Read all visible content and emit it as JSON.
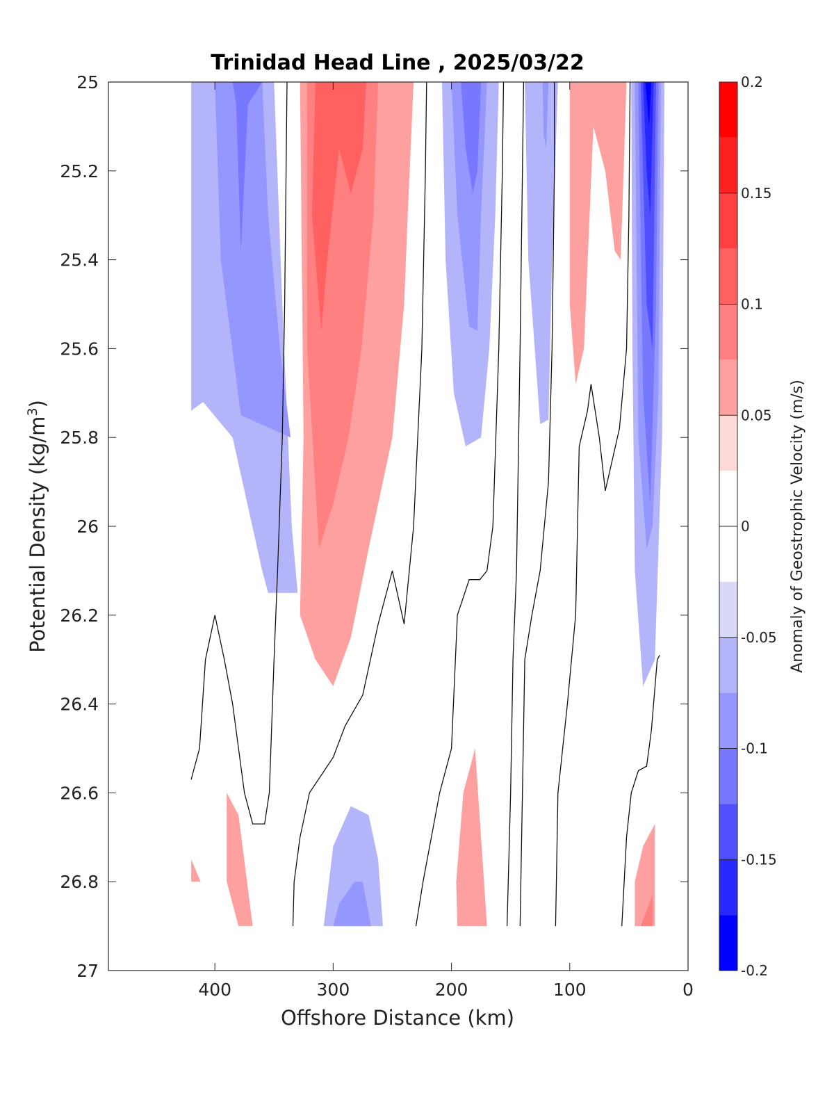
{
  "chart_data": {
    "type": "contour",
    "title": "Trinidad Head Line , 2025/03/22",
    "xlabel": "Offshore Distance (km)",
    "ylabel_main": "Potential Density (kg/m",
    "ylabel_sup": "3",
    "ylabel_close": ")",
    "xlim": [
      490,
      0
    ],
    "ylim": [
      25,
      27
    ],
    "y_reversed": true,
    "grid": false,
    "x_ticks": [
      400,
      300,
      200,
      100,
      0
    ],
    "x_tick_labels": [
      "400",
      "300",
      "200",
      "100",
      "0"
    ],
    "y_ticks": [
      25,
      25.2,
      25.4,
      25.6,
      25.8,
      26,
      26.2,
      26.4,
      26.6,
      26.8,
      27
    ],
    "y_tick_labels": [
      "25",
      "25.2",
      "25.4",
      "25.6",
      "25.8",
      "26",
      "26.2",
      "26.4",
      "26.6",
      "26.8",
      "27"
    ],
    "colorbar": {
      "label": "Anomaly of Geostrophic Velocity (m/s)",
      "range": [
        -0.2,
        0.2
      ],
      "tick_values": [
        0.2,
        0.15,
        0.1,
        0.05,
        0,
        -0.05,
        -0.1,
        -0.15,
        -0.2
      ],
      "tick_labels": [
        "0.2",
        "0.15",
        "0.1",
        "0.05",
        "0",
        "-0.05",
        "-0.1",
        "-0.15",
        "-0.2"
      ],
      "bins": [
        {
          "min": 0.175,
          "max": 0.2,
          "color": "#ff0000"
        },
        {
          "min": 0.15,
          "max": 0.175,
          "color": "#ff2020"
        },
        {
          "min": 0.125,
          "max": 0.15,
          "color": "#ff4040"
        },
        {
          "min": 0.1,
          "max": 0.125,
          "color": "#ff6060"
        },
        {
          "min": 0.075,
          "max": 0.1,
          "color": "#ff8080"
        },
        {
          "min": 0.05,
          "max": 0.075,
          "color": "#ffa0a0"
        },
        {
          "min": 0.025,
          "max": 0.05,
          "color": "#ffd8d8"
        },
        {
          "min": -0.025,
          "max": 0.025,
          "color": "#ffffff"
        },
        {
          "min": -0.05,
          "max": -0.025,
          "color": "#d8d8f8"
        },
        {
          "min": -0.075,
          "max": -0.05,
          "color": "#b4b4fa"
        },
        {
          "min": -0.1,
          "max": -0.075,
          "color": "#9696ff"
        },
        {
          "min": -0.125,
          "max": -0.1,
          "color": "#7878ff"
        },
        {
          "min": -0.15,
          "max": -0.125,
          "color": "#5050ff"
        },
        {
          "min": -0.175,
          "max": -0.15,
          "color": "#2828ff"
        },
        {
          "min": -0.2,
          "max": -0.175,
          "color": "#0000ff"
        }
      ]
    },
    "regions": [
      {
        "level": -0.05,
        "points": [
          [
            420,
            25
          ],
          [
            350,
            25
          ],
          [
            343,
            25.5
          ],
          [
            335,
            26
          ],
          [
            330,
            26.15
          ],
          [
            355,
            26.15
          ],
          [
            360,
            26.1
          ],
          [
            385,
            25.8
          ],
          [
            410,
            25.72
          ],
          [
            420,
            25.74
          ]
        ]
      },
      {
        "level": -0.075,
        "points": [
          [
            400,
            25
          ],
          [
            360,
            25
          ],
          [
            355,
            25.3
          ],
          [
            345,
            25.6
          ],
          [
            336,
            25.8
          ],
          [
            378,
            25.75
          ],
          [
            395,
            25.4
          ]
        ]
      },
      {
        "level": -0.1,
        "points": [
          [
            385,
            25
          ],
          [
            360,
            25
          ],
          [
            372,
            25.05
          ],
          [
            378,
            25.38
          ],
          [
            382,
            25.05
          ]
        ]
      },
      {
        "level": 0.05,
        "points": [
          [
            328,
            25
          ],
          [
            232,
            25
          ],
          [
            237,
            25.3
          ],
          [
            240,
            25.5
          ],
          [
            250,
            25.8
          ],
          [
            270,
            26.05
          ],
          [
            285,
            26.25
          ],
          [
            300,
            26.36
          ],
          [
            315,
            26.3
          ],
          [
            328,
            26.2
          ],
          [
            325,
            25.8
          ]
        ]
      },
      {
        "level": 0.075,
        "points": [
          [
            322,
            25
          ],
          [
            262,
            25
          ],
          [
            266,
            25.3
          ],
          [
            276,
            25.6
          ],
          [
            287,
            25.8
          ],
          [
            300,
            25.95
          ],
          [
            312,
            26.05
          ],
          [
            322,
            25.6
          ]
        ]
      },
      {
        "level": 0.1,
        "points": [
          [
            315,
            25
          ],
          [
            272,
            25
          ],
          [
            275,
            25.15
          ],
          [
            285,
            25.25
          ],
          [
            295,
            25.15
          ],
          [
            305,
            25.4
          ],
          [
            310,
            25.56
          ],
          [
            318,
            25.3
          ]
        ]
      },
      {
        "level": -0.05,
        "points": [
          [
            208,
            25
          ],
          [
            160,
            25
          ],
          [
            163,
            25.3
          ],
          [
            168,
            25.6
          ],
          [
            175,
            25.8
          ],
          [
            188,
            25.82
          ],
          [
            198,
            25.7
          ],
          [
            205,
            25.4
          ]
        ]
      },
      {
        "level": -0.075,
        "points": [
          [
            200,
            25
          ],
          [
            170,
            25
          ],
          [
            175,
            25.3
          ],
          [
            178,
            25.56
          ],
          [
            185,
            25.55
          ],
          [
            195,
            25.3
          ]
        ]
      },
      {
        "level": -0.1,
        "points": [
          [
            192,
            25
          ],
          [
            175,
            25
          ],
          [
            178,
            25.2
          ],
          [
            182,
            25.25
          ],
          [
            188,
            25.15
          ]
        ]
      },
      {
        "level": -0.05,
        "points": [
          [
            138,
            25
          ],
          [
            110,
            25
          ],
          [
            115,
            25.4
          ],
          [
            118,
            25.76
          ],
          [
            125,
            25.77
          ],
          [
            135,
            25.4
          ]
        ]
      },
      {
        "level": -0.075,
        "points": [
          [
            123,
            25
          ],
          [
            118,
            25
          ],
          [
            120,
            25.15
          ],
          [
            122,
            25.12
          ]
        ]
      },
      {
        "level": 0.05,
        "points": [
          [
            100,
            25
          ],
          [
            52,
            25
          ],
          [
            57,
            25.4
          ],
          [
            62,
            25.38
          ],
          [
            70,
            25.2
          ],
          [
            80,
            25.1
          ],
          [
            88,
            25.6
          ],
          [
            95,
            25.68
          ],
          [
            100,
            25.5
          ]
        ]
      },
      {
        "level": -0.05,
        "points": [
          [
            48,
            25
          ],
          [
            20,
            25
          ],
          [
            22,
            25.8
          ],
          [
            28,
            26.3
          ],
          [
            38,
            26.36
          ],
          [
            45,
            26.1
          ],
          [
            47,
            25.6
          ]
        ]
      },
      {
        "level": -0.075,
        "points": [
          [
            45,
            25
          ],
          [
            23,
            25
          ],
          [
            25,
            25.7
          ],
          [
            30,
            26.0
          ],
          [
            35,
            26.05
          ],
          [
            42,
            25.8
          ]
        ]
      },
      {
        "level": -0.1,
        "points": [
          [
            42,
            25
          ],
          [
            25,
            25
          ],
          [
            27,
            25.5
          ],
          [
            32,
            25.95
          ],
          [
            38,
            25.7
          ]
        ]
      },
      {
        "level": -0.125,
        "points": [
          [
            40,
            25
          ],
          [
            27,
            25
          ],
          [
            30,
            25.6
          ],
          [
            35,
            25.5
          ]
        ]
      },
      {
        "level": -0.15,
        "points": [
          [
            38,
            25
          ],
          [
            29,
            25
          ],
          [
            32,
            25.3
          ],
          [
            35,
            25.2
          ]
        ]
      },
      {
        "level": -0.175,
        "points": [
          [
            36,
            25
          ],
          [
            31,
            25
          ],
          [
            33,
            25.1
          ]
        ]
      },
      {
        "level": 0.05,
        "points": [
          [
            420,
            26.75
          ],
          [
            412,
            26.8
          ],
          [
            420,
            26.8
          ]
        ]
      },
      {
        "level": 0.05,
        "points": [
          [
            390,
            26.6
          ],
          [
            380,
            26.65
          ],
          [
            368,
            26.9
          ],
          [
            380,
            26.9
          ],
          [
            390,
            26.8
          ]
        ]
      },
      {
        "level": 0.05,
        "points": [
          [
            195,
            26.9
          ],
          [
            170,
            26.9
          ],
          [
            175,
            26.7
          ],
          [
            180,
            26.5
          ],
          [
            190,
            26.6
          ],
          [
            196,
            26.8
          ]
        ]
      },
      {
        "level": 0.05,
        "points": [
          [
            45,
            26.9
          ],
          [
            28,
            26.9
          ],
          [
            28,
            26.67
          ],
          [
            38,
            26.72
          ],
          [
            45,
            26.8
          ]
        ]
      },
      {
        "level": 0.075,
        "points": [
          [
            40,
            26.9
          ],
          [
            30,
            26.9
          ],
          [
            30,
            26.83
          ]
        ]
      },
      {
        "level": -0.05,
        "points": [
          [
            308,
            26.9
          ],
          [
            258,
            26.9
          ],
          [
            262,
            26.75
          ],
          [
            270,
            26.65
          ],
          [
            285,
            26.63
          ],
          [
            300,
            26.72
          ]
        ]
      },
      {
        "level": -0.075,
        "points": [
          [
            300,
            26.9
          ],
          [
            268,
            26.9
          ],
          [
            275,
            26.8
          ],
          [
            282,
            26.8
          ],
          [
            295,
            26.85
          ]
        ]
      }
    ],
    "zero_contours": [
      [
        [
          420,
          26.57
        ],
        [
          413,
          26.5
        ],
        [
          408,
          26.3
        ],
        [
          400,
          26.2
        ],
        [
          392,
          26.3
        ],
        [
          385,
          26.4
        ],
        [
          375,
          26.6
        ],
        [
          368,
          26.67
        ],
        [
          358,
          26.67
        ],
        [
          354,
          26.6
        ],
        [
          350,
          26.3
        ],
        [
          347,
          26.1
        ],
        [
          343,
          25.8
        ],
        [
          341,
          25.5
        ],
        [
          339,
          25
        ]
      ],
      [
        [
          334,
          26.9
        ],
        [
          333,
          26.8
        ],
        [
          328,
          26.7
        ],
        [
          320,
          26.6
        ],
        [
          300,
          26.52
        ],
        [
          290,
          26.45
        ],
        [
          275,
          26.38
        ],
        [
          262,
          26.22
        ],
        [
          250,
          26.1
        ],
        [
          240,
          26.22
        ],
        [
          232,
          26
        ],
        [
          225,
          25.6
        ],
        [
          222,
          25.2
        ],
        [
          221,
          25
        ]
      ],
      [
        [
          230,
          26.9
        ],
        [
          224,
          26.8
        ],
        [
          210,
          26.6
        ],
        [
          200,
          26.5
        ],
        [
          195,
          26.2
        ],
        [
          185,
          26.12
        ],
        [
          176,
          26.12
        ],
        [
          170,
          26.1
        ],
        [
          165,
          26
        ],
        [
          160,
          25.6
        ],
        [
          157,
          25.2
        ],
        [
          156,
          25
        ]
      ],
      [
        [
          153,
          26.9
        ],
        [
          150,
          26.6
        ],
        [
          148,
          26.3
        ],
        [
          145,
          26.1
        ],
        [
          142,
          25.6
        ],
        [
          140,
          25.2
        ],
        [
          139,
          25
        ]
      ],
      [
        [
          142,
          26.9
        ],
        [
          140,
          26.6
        ],
        [
          138,
          26.3
        ],
        [
          132,
          26.2
        ],
        [
          125,
          26.1
        ],
        [
          118,
          25.9
        ],
        [
          115,
          25.6
        ],
        [
          113,
          25.2
        ],
        [
          113,
          25
        ]
      ],
      [
        [
          112,
          26.9
        ],
        [
          110,
          26.6
        ],
        [
          102,
          26.4
        ],
        [
          95,
          26.2
        ],
        [
          92,
          25.82
        ],
        [
          85,
          25.74
        ],
        [
          82,
          25.68
        ],
        [
          75,
          25.8
        ],
        [
          70,
          25.92
        ],
        [
          58,
          25.78
        ],
        [
          52,
          25.6
        ],
        [
          50,
          25.3
        ],
        [
          49,
          25
        ]
      ],
      [
        [
          56,
          26.9
        ],
        [
          52,
          26.7
        ],
        [
          48,
          26.6
        ],
        [
          42,
          26.55
        ],
        [
          35,
          26.54
        ],
        [
          31,
          26.46
        ],
        [
          26,
          26.3
        ],
        [
          24,
          26.29
        ]
      ]
    ]
  }
}
